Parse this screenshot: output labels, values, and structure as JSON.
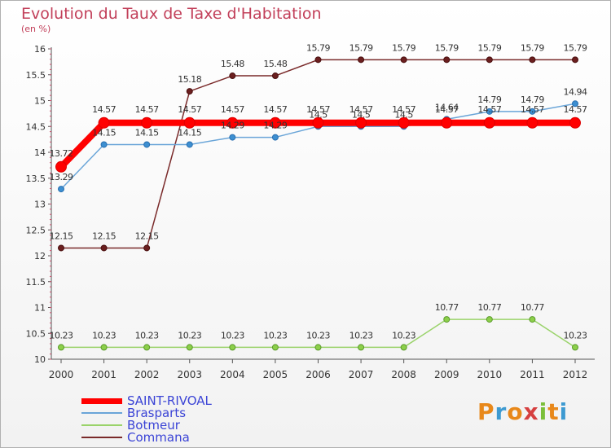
{
  "title": "Evolution du Taux de Taxe d'Habitation",
  "unit": "(en %)",
  "logo": {
    "letters": [
      "P",
      "r",
      "o",
      "x",
      "i",
      "t",
      "i"
    ],
    "colors": [
      "#e8881a",
      "#3d9ad1",
      "#e8881a",
      "#d64040",
      "#7bbf3a",
      "#e8881a",
      "#3d9ad1"
    ]
  },
  "chart_data": {
    "type": "line",
    "title": "Evolution du Taux de Taxe d'Habitation",
    "ylabel": "(en %)",
    "xlabel": "",
    "x": [
      "2000",
      "2001",
      "2002",
      "2003",
      "2004",
      "2005",
      "2006",
      "2007",
      "2008",
      "2009",
      "2010",
      "2011",
      "2012"
    ],
    "ylim": [
      10,
      16
    ],
    "yticks": [
      "10",
      "10.5",
      "11",
      "11.5",
      "12",
      "12.5",
      "13",
      "13.5",
      "14",
      "14.5",
      "15",
      "15.5",
      "16"
    ],
    "grid": false,
    "legend_position": "bottom-left",
    "series": [
      {
        "name": "SAINT-RIVOAL",
        "color": "#ff0000",
        "values": [
          13.72,
          14.57,
          14.57,
          14.57,
          14.57,
          14.57,
          14.57,
          14.57,
          14.57,
          14.57,
          14.57,
          14.57,
          14.57
        ],
        "labels": [
          "13.72",
          "14.57",
          "14.57",
          "14.57",
          "14.57",
          "14.57",
          "14.57",
          "14.57",
          "14.57",
          "14.57",
          "14.57",
          "14.57",
          "14.57"
        ]
      },
      {
        "name": "Brasparts",
        "color": "#6aa5d8",
        "values": [
          13.29,
          14.15,
          14.15,
          14.15,
          14.29,
          14.29,
          14.5,
          14.5,
          14.5,
          14.64,
          14.79,
          14.79,
          14.94
        ],
        "labels": [
          "13.29",
          "14.15",
          "14.15",
          "14.15",
          "14.29",
          "14.29",
          "14.5",
          "14.5",
          "14.5",
          "14.64",
          "14.79",
          "14.79",
          "14.94"
        ]
      },
      {
        "name": "Botmeur",
        "color": "#9ad36a",
        "values": [
          10.23,
          10.23,
          10.23,
          10.23,
          10.23,
          10.23,
          10.23,
          10.23,
          10.23,
          10.77,
          10.77,
          10.77,
          10.23
        ],
        "labels": [
          "10.23",
          "10.23",
          "10.23",
          "10.23",
          "10.23",
          "10.23",
          "10.23",
          "10.23",
          "10.23",
          "10.77",
          "10.77",
          "10.77",
          "10.23"
        ]
      },
      {
        "name": "Commana",
        "color": "#7a2a2a",
        "values": [
          12.15,
          12.15,
          12.15,
          15.18,
          15.48,
          15.48,
          15.79,
          15.79,
          15.79,
          15.79,
          15.79,
          15.79,
          15.79
        ],
        "labels": [
          "12.15",
          "12.15",
          "12.15",
          "15.18",
          "15.48",
          "15.48",
          "15.79",
          "15.79",
          "15.79",
          "15.79",
          "15.79",
          "15.79",
          "15.79"
        ]
      }
    ]
  }
}
